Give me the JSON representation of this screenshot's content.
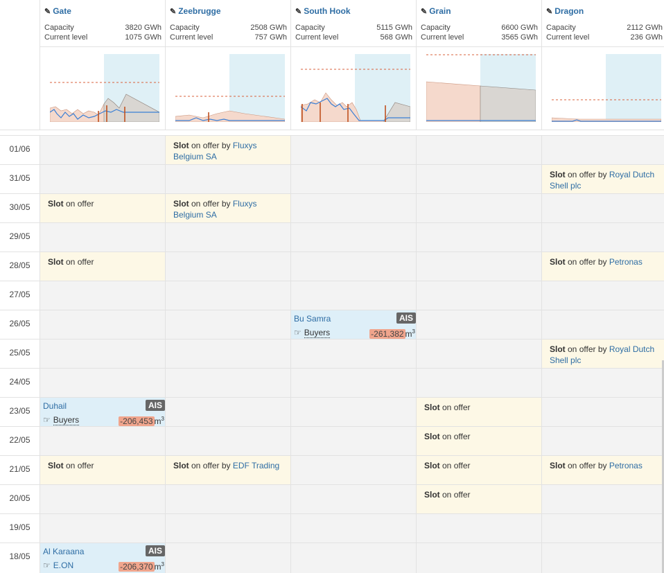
{
  "terminals": [
    {
      "name": "Gate",
      "capacity": "3820 GWh",
      "current_level": "1075 GWh"
    },
    {
      "name": "Zeebrugge",
      "capacity": "2508 GWh",
      "current_level": "757 GWh"
    },
    {
      "name": "South Hook",
      "capacity": "5115 GWh",
      "current_level": "568 GWh"
    },
    {
      "name": "Grain",
      "capacity": "6600 GWh",
      "current_level": "3565 GWh"
    },
    {
      "name": "Dragon",
      "capacity": "2112 GWh",
      "current_level": "236 GWh"
    }
  ],
  "labels": {
    "capacity": "Capacity",
    "current_level": "Current level",
    "slot": "Slot",
    "on_offer": " on offer",
    "by": " by ",
    "ais": "AIS",
    "buyers": "Buyers",
    "unit": "m",
    "unit_sup": "3"
  },
  "dates": [
    "01/06",
    "31/05",
    "30/05",
    "29/05",
    "28/05",
    "27/05",
    "26/05",
    "25/05",
    "24/05",
    "23/05",
    "22/05",
    "21/05",
    "20/05",
    "19/05",
    "18/05"
  ],
  "entries": {
    "zee_0106": {
      "by": "Fluxys Belgium SA"
    },
    "dragon_3105": {
      "by": "Royal Dutch Shell plc"
    },
    "zee_3005": {
      "by": "Fluxys Belgium SA"
    },
    "dragon_2805": {
      "by": "Petronas"
    },
    "dragon_2505": {
      "by": "Royal Dutch Shell plc"
    },
    "zee_2105": {
      "by": "EDF Trading"
    },
    "dragon_2105": {
      "by": "Petronas"
    },
    "southhook_2605": {
      "ship": "Bu Samra",
      "buyer": "Buyers",
      "volume": "-261,382"
    },
    "gate_2305": {
      "ship": "Duhail",
      "buyer": "Buyers",
      "volume": "-206,453"
    },
    "gate_1805": {
      "ship": "Al Karaana",
      "buyer": "E.ON",
      "volume": "-206,370"
    }
  },
  "colors": {
    "link": "#2e6da4",
    "offer_bg": "#fdf8e6",
    "ship_bg": "#deeff8",
    "volume_bg": "#f0a58d",
    "chart_fill": "#f5d9cc",
    "chart_grey": "#d9d6d2",
    "chart_blue": "#3a7fd5",
    "chart_sky": "#dff0f6",
    "dashed": "#d9603b"
  }
}
